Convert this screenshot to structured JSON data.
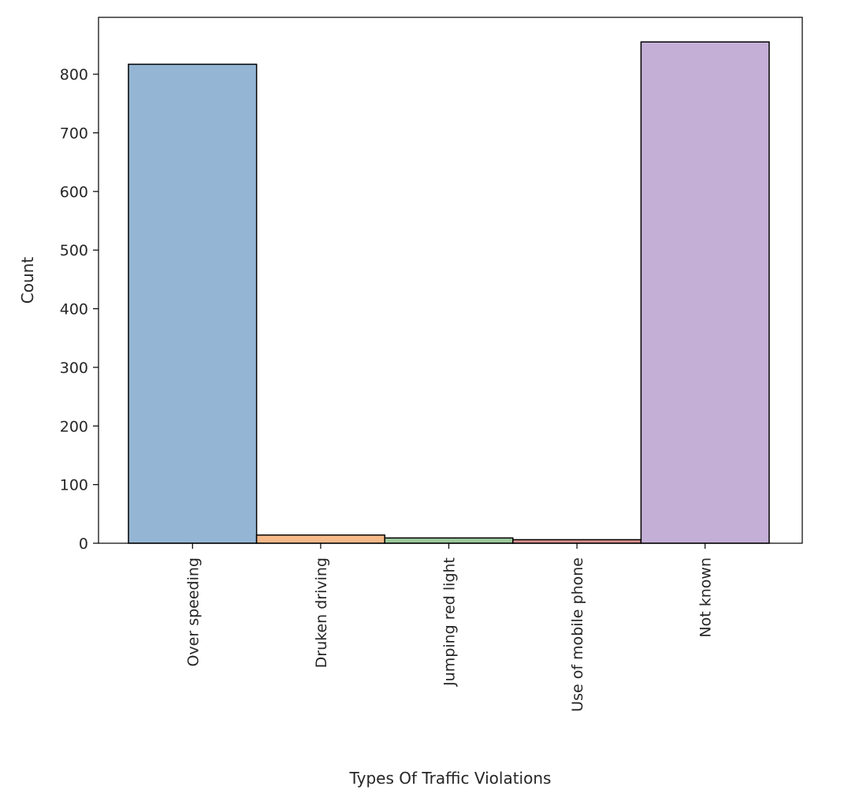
{
  "chart_data": {
    "type": "bar",
    "title": "",
    "xlabel": "Types Of Traffic Violations",
    "ylabel": "Count",
    "categories": [
      "Over speeding",
      "Druken driving",
      "Jumping red light",
      "Use of mobile phone",
      "Not known"
    ],
    "values": [
      817,
      14,
      9,
      6,
      855
    ],
    "colors": [
      "#94b6d4",
      "#f5b98a",
      "#9bc99b",
      "#d98f8f",
      "#c4afd6"
    ],
    "yticks": [
      0,
      100,
      200,
      300,
      400,
      500,
      600,
      700,
      800
    ],
    "ylim": [
      0,
      897
    ],
    "grid": false,
    "legend": "none",
    "edge_color": "#000000"
  }
}
